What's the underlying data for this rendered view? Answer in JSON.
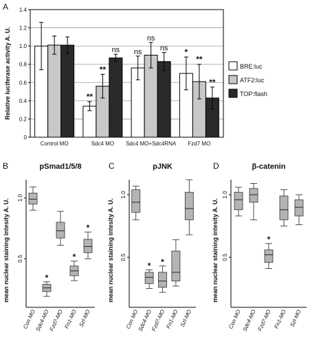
{
  "chart_data": [
    {
      "panel": "A",
      "type": "bar",
      "title": "",
      "ylabel": "Relative luciferase activity A. U.",
      "ylim": [
        0,
        1.4
      ],
      "yticks": [
        0,
        0.2,
        0.4,
        0.6,
        0.8,
        1.0,
        1.2,
        1.4
      ],
      "ytick_labels": [
        "0",
        "0.2",
        "0.4",
        "0.6",
        "0.8",
        "1.0",
        "1.2",
        "1.4"
      ],
      "grid": true,
      "legend_position": "right",
      "categories": [
        "Control MO",
        "Sdc4 MO",
        "Sdc4 MO+Sdc4RNA",
        "Fzd7 MO"
      ],
      "series": [
        {
          "name": "BRE:luc",
          "color": "#ffffff",
          "values": [
            1.0,
            0.34,
            0.76,
            0.7
          ],
          "errors": [
            0.26,
            0.05,
            0.13,
            0.18
          ],
          "annotations": [
            "",
            "**",
            "ns",
            "*"
          ]
        },
        {
          "name": "ATF2:luc",
          "color": "#c8c8c8",
          "values": [
            1.01,
            0.56,
            0.9,
            0.61
          ],
          "errors": [
            0.1,
            0.13,
            0.14,
            0.19
          ],
          "annotations": [
            "",
            "**",
            "ns",
            "**"
          ]
        },
        {
          "name": "TOP:flash",
          "color": "#2a2a2a",
          "values": [
            1.01,
            0.87,
            0.83,
            0.43
          ],
          "errors": [
            0.09,
            0.04,
            0.1,
            0.12
          ],
          "annotations": [
            "",
            "ns",
            "ns",
            "**"
          ]
        }
      ]
    },
    {
      "panel": "B",
      "type": "box",
      "title": "pSmad1/5/8",
      "ylabel": "mean nuclear staining intesity A. U.",
      "ylim": [
        0.1,
        1.15
      ],
      "yticks": [
        0.5,
        1.0
      ],
      "ytick_labels": [
        "0.5",
        "1.0"
      ],
      "categories": [
        "Con MO",
        "Sdc4-MO",
        "Fzd7-MO",
        "Fn1-MO",
        "Szl-MO"
      ],
      "boxes": [
        {
          "min": 0.9,
          "q1": 0.95,
          "median": 0.99,
          "q3": 1.04,
          "max": 1.09,
          "annotation": ""
        },
        {
          "min": 0.19,
          "q1": 0.23,
          "median": 0.26,
          "q3": 0.29,
          "max": 0.31,
          "annotation": "*"
        },
        {
          "min": 0.61,
          "q1": 0.67,
          "median": 0.73,
          "q3": 0.8,
          "max": 0.89,
          "annotation": ""
        },
        {
          "min": 0.32,
          "q1": 0.36,
          "median": 0.4,
          "q3": 0.44,
          "max": 0.48,
          "annotation": "*"
        },
        {
          "min": 0.5,
          "q1": 0.55,
          "median": 0.6,
          "q3": 0.66,
          "max": 0.72,
          "annotation": "*"
        }
      ]
    },
    {
      "panel": "C",
      "type": "box",
      "title": "pJNK",
      "ylabel": "mean nuclear staining intesity A. U.",
      "ylim": [
        0.1,
        1.12
      ],
      "yticks": [
        0.5,
        1.0
      ],
      "ytick_labels": [
        "0.5",
        "1.0"
      ],
      "categories": [
        "Con MO",
        "Sdc4-MO",
        "Fzd7-MO",
        "Fn1-MO",
        "Szl-MO"
      ],
      "boxes": [
        {
          "min": 0.8,
          "q1": 0.86,
          "median": 0.94,
          "q3": 1.04,
          "max": 1.07,
          "annotation": ""
        },
        {
          "min": 0.25,
          "q1": 0.29,
          "median": 0.34,
          "q3": 0.38,
          "max": 0.4,
          "annotation": "*"
        },
        {
          "min": 0.22,
          "q1": 0.26,
          "median": 0.31,
          "q3": 0.38,
          "max": 0.43,
          "annotation": "*"
        },
        {
          "min": 0.27,
          "q1": 0.31,
          "median": 0.38,
          "q3": 0.55,
          "max": 0.64,
          "annotation": ""
        },
        {
          "min": 0.68,
          "q1": 0.8,
          "median": 0.89,
          "q3": 1.02,
          "max": 1.12,
          "annotation": ""
        }
      ]
    },
    {
      "panel": "D",
      "type": "box",
      "title": "β-catenin",
      "ylabel": "mean nuclear staining intesity A. U.",
      "ylim": [
        0.1,
        1.12
      ],
      "yticks": [
        0.5,
        1.0
      ],
      "ytick_labels": [
        "0.5",
        "1.0"
      ],
      "categories": [
        "Con MO",
        "Sdc4-MO",
        "Fzd7-MO",
        "Fn1-MO",
        "Szl-MO"
      ],
      "boxes": [
        {
          "min": 0.83,
          "q1": 0.88,
          "median": 0.96,
          "q3": 1.02,
          "max": 1.06,
          "annotation": ""
        },
        {
          "min": 0.8,
          "q1": 0.94,
          "median": 1.0,
          "q3": 1.05,
          "max": 1.09,
          "annotation": ""
        },
        {
          "min": 0.41,
          "q1": 0.46,
          "median": 0.52,
          "q3": 0.56,
          "max": 0.61,
          "annotation": "*"
        },
        {
          "min": 0.75,
          "q1": 0.8,
          "median": 0.88,
          "q3": 0.99,
          "max": 1.04,
          "annotation": ""
        },
        {
          "min": 0.76,
          "q1": 0.83,
          "median": 0.9,
          "q3": 0.96,
          "max": 1.0,
          "annotation": ""
        }
      ]
    }
  ]
}
